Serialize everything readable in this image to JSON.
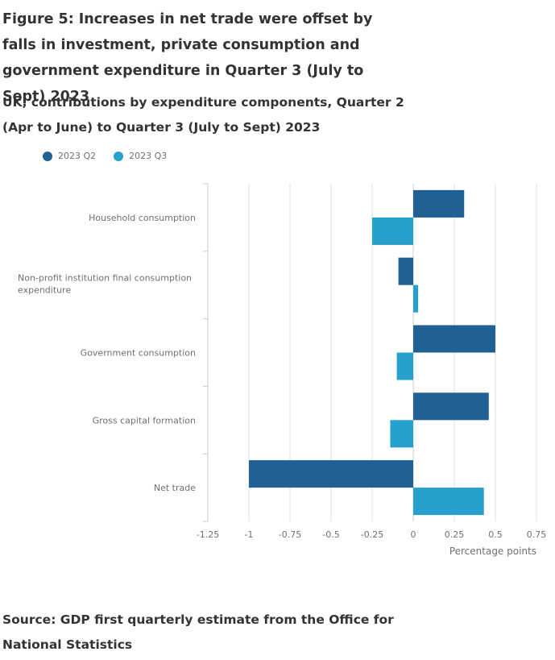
{
  "title": "Figure 5: Increases in net trade were offset by falls in investment, private consumption and government expenditure in Quarter 3 (July to Sept) 2023",
  "subtitle": "UK, contributions by expenditure components, Quarter 2 (Apr to June) to Quarter 3 (July to Sept) 2023",
  "source": "Source: GDP first quarterly estimate from the Office for National Statistics",
  "legend": [
    {
      "label": "2023 Q2",
      "color": "#206095"
    },
    {
      "label": "2023 Q3",
      "color": "#27a0cc"
    }
  ],
  "chart_data": {
    "type": "bar",
    "orientation": "horizontal",
    "title": "Figure 5: Increases in net trade were offset by falls in investment, private consumption and government expenditure in Quarter 3 (July to Sept) 2023",
    "subtitle": "UK, contributions by expenditure components, Quarter 2 (Apr to June) to Quarter 3 (July to Sept) 2023",
    "categories": [
      "Household consumption",
      "Non-profit institution final consumption expenditure",
      "Government consumption",
      "Gross capital formation",
      "Net trade"
    ],
    "series": [
      {
        "name": "2023 Q2",
        "color": "#206095",
        "values": [
          0.31,
          -0.09,
          0.5,
          0.46,
          -1.0
        ]
      },
      {
        "name": "2023 Q3",
        "color": "#27a0cc",
        "values": [
          -0.25,
          0.03,
          -0.1,
          -0.14,
          0.43
        ]
      }
    ],
    "xlabel": "Percentage points",
    "ylabel": "",
    "xlim": [
      -1.25,
      0.75
    ],
    "xticks": [
      "-1.25",
      "-1",
      "-0.75",
      "-0.5",
      "-0.25",
      "0",
      "0.25",
      "0.5",
      "0.75"
    ],
    "xtick_values": [
      -1.25,
      -1,
      -0.75,
      -0.5,
      -0.25,
      0,
      0.25,
      0.5,
      0.75
    ],
    "grid": true,
    "legend_position": "top-left"
  }
}
